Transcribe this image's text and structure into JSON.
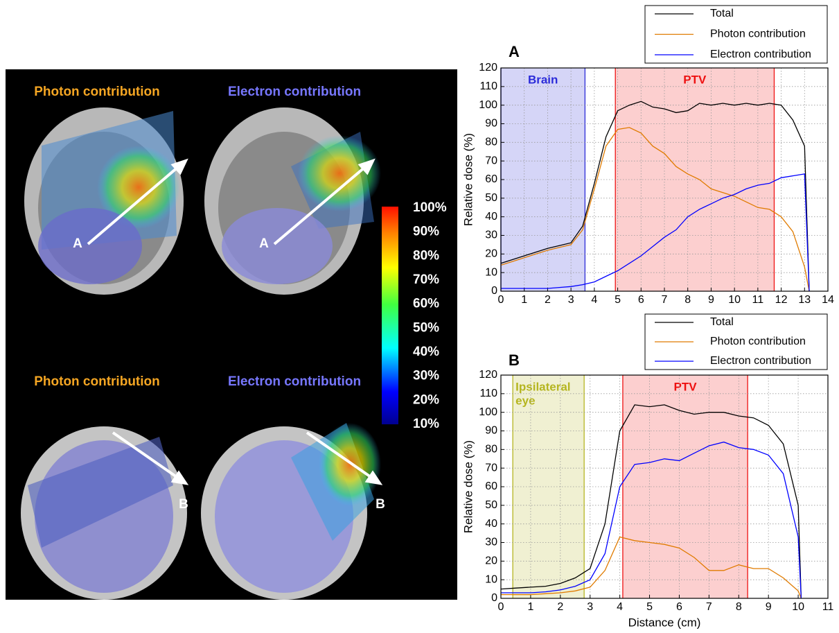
{
  "images": {
    "panels": [
      {
        "title": "Photon contribution",
        "title_color": "#f5a623",
        "arrow_label": "A"
      },
      {
        "title": "Electron contribution",
        "title_color": "#7777ff",
        "arrow_label": "A"
      },
      {
        "title": "Photon contribution",
        "title_color": "#f5a623",
        "arrow_label": "B"
      },
      {
        "title": "Electron contribution",
        "title_color": "#7777ff",
        "arrow_label": "B"
      }
    ],
    "colorbar_labels": [
      "100%",
      "90%",
      "80%",
      "70%",
      "60%",
      "50%",
      "40%",
      "30%",
      "20%",
      "10%"
    ]
  },
  "chart_data": [
    {
      "type": "line",
      "title": "A",
      "y_label": "Relative dose (%)",
      "xlim": [
        0,
        14
      ],
      "xticks": [
        0,
        1,
        2,
        3,
        4,
        5,
        6,
        7,
        8,
        9,
        10,
        11,
        12,
        13,
        14
      ],
      "ylim": [
        0,
        120
      ],
      "yticks": [
        0,
        10,
        20,
        30,
        40,
        50,
        60,
        70,
        80,
        90,
        100,
        110,
        120
      ],
      "grid": true,
      "x": [
        0,
        0.5,
        1,
        1.5,
        2,
        2.5,
        3,
        3.5,
        4,
        4.5,
        5,
        5.5,
        6,
        6.5,
        7,
        7.5,
        8,
        8.5,
        9,
        9.5,
        10,
        10.5,
        11,
        11.5,
        12,
        12.5,
        13,
        13.2
      ],
      "series": [
        {
          "name": "Total",
          "color": "#000000",
          "values": [
            15,
            17,
            19,
            21,
            23,
            24.5,
            26,
            35,
            58,
            83,
            97,
            100,
            102,
            99,
            98,
            96,
            97,
            101,
            100,
            101,
            100,
            101,
            100,
            101,
            100,
            92,
            78,
            0
          ]
        },
        {
          "name": "Photon contribution",
          "color": "#e07b00",
          "values": [
            14,
            16,
            18,
            20,
            22,
            23.5,
            25,
            33,
            55,
            78,
            87,
            88,
            85,
            78,
            74,
            67,
            63,
            60,
            55,
            53,
            51,
            48,
            45,
            44,
            40,
            32,
            13,
            0
          ]
        },
        {
          "name": "Electron contribution",
          "color": "#0000ff",
          "values": [
            1.5,
            1.5,
            1.5,
            1.5,
            1.5,
            2,
            2.5,
            3.5,
            5,
            8,
            11,
            15,
            19,
            24,
            29,
            33,
            40,
            44,
            47,
            50,
            52,
            55,
            57,
            58,
            61,
            62,
            63,
            0
          ]
        }
      ],
      "regions": [
        {
          "label": "Brain",
          "start": 0,
          "end": 3.6,
          "color": "#2b2bd9"
        },
        {
          "label": "PTV",
          "start": 4.9,
          "end": 11.7,
          "color": "#ee1111"
        }
      ]
    },
    {
      "type": "line",
      "title": "B",
      "y_label": "Relative dose (%)",
      "x_label": "Distance (cm)",
      "xlim": [
        0,
        11
      ],
      "xticks": [
        0,
        1,
        2,
        3,
        4,
        5,
        6,
        7,
        8,
        9,
        10,
        11
      ],
      "ylim": [
        0,
        120
      ],
      "yticks": [
        0,
        10,
        20,
        30,
        40,
        50,
        60,
        70,
        80,
        90,
        100,
        110,
        120
      ],
      "grid": true,
      "x": [
        0,
        0.5,
        1,
        1.5,
        2,
        2.5,
        3,
        3.5,
        4,
        4.5,
        5,
        5.5,
        6,
        6.5,
        7,
        7.5,
        8,
        8.5,
        9,
        9.5,
        10,
        10.1
      ],
      "series": [
        {
          "name": "Total",
          "color": "#000000",
          "values": [
            5,
            5.5,
            6,
            6.5,
            8,
            11,
            16,
            40,
            90,
            104,
            103,
            104,
            101,
            99,
            100,
            100,
            98,
            97,
            93,
            83,
            50,
            0
          ]
        },
        {
          "name": "Photon contribution",
          "color": "#e07b00",
          "values": [
            2,
            2,
            2,
            2.5,
            3,
            4,
            6,
            15,
            33,
            31,
            30,
            29,
            27,
            22,
            15,
            15,
            18,
            16,
            16,
            11,
            4,
            0
          ]
        },
        {
          "name": "Electron contribution",
          "color": "#0000ff",
          "values": [
            3,
            3,
            3,
            3.5,
            4.5,
            6.5,
            10,
            24,
            60,
            72,
            73,
            75,
            74,
            78,
            82,
            84,
            81,
            80,
            77,
            67,
            33,
            0
          ]
        }
      ],
      "regions": [
        {
          "label_lines": [
            "Ipsilateral",
            "eye"
          ],
          "start": 0.4,
          "end": 2.8,
          "color": "#b5b520"
        },
        {
          "label": "PTV",
          "start": 4.1,
          "end": 8.3,
          "color": "#ee1111"
        }
      ]
    }
  ]
}
